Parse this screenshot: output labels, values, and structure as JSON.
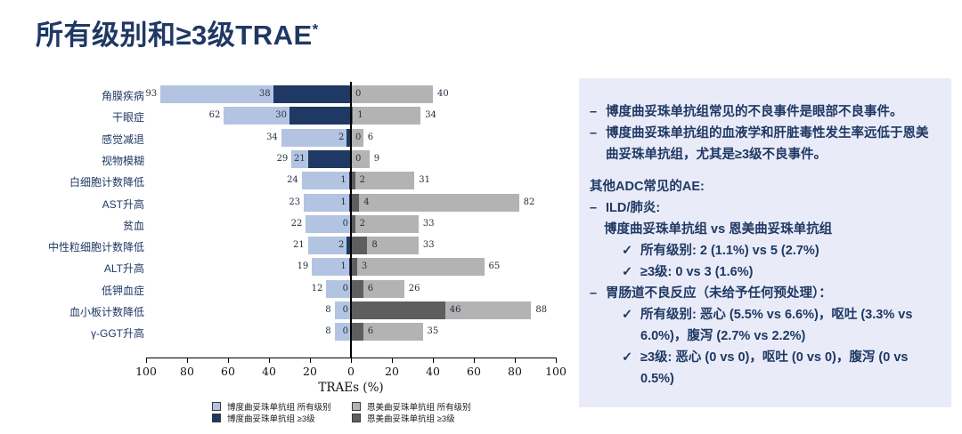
{
  "title": {
    "text": "所有级别和≥3级TRAE",
    "superscript": "*"
  },
  "colors": {
    "title_navy": "#1F3864",
    "bd_all_grade": "#B3C4E2",
    "bd_grade3": "#1F3864",
    "tdm1_all_grade": "#B3B3B3",
    "tdm1_grade3": "#5E5E5E",
    "panel_bg": "#E9ECF8",
    "axis": "#000000"
  },
  "chart_data": {
    "type": "bar",
    "subtype": "diverging-horizontal",
    "xlabel": "TRAEs (%)",
    "xlim": [
      -100,
      100
    ],
    "xticks": [
      -100,
      -80,
      -60,
      -40,
      -20,
      0,
      20,
      40,
      60,
      80,
      100
    ],
    "grid": false,
    "legend_position": "bottom",
    "categories": [
      "角膜疾病",
      "干眼症",
      "感觉减退",
      "视物模糊",
      "白细胞计数降低",
      "AST升高",
      "贫血",
      "中性粒细胞计数降低",
      "ALT升高",
      "低钾血症",
      "血小板计数降低",
      "γ-GGT升高"
    ],
    "series": [
      {
        "name": "博度曲妥珠单抗组 所有级别",
        "side": "left",
        "color": "#B3C4E2",
        "values": [
          93,
          62,
          34,
          29,
          24,
          23,
          22,
          21,
          19,
          12,
          8,
          8
        ]
      },
      {
        "name": "博度曲妥珠单抗组 ≥3级",
        "side": "left",
        "color": "#1F3864",
        "values": [
          38,
          30,
          2,
          21,
          1,
          1,
          0,
          2,
          1,
          0,
          0,
          0
        ]
      },
      {
        "name": "恩美曲妥珠单抗组 所有级别",
        "side": "right",
        "color": "#B3B3B3",
        "values": [
          40,
          34,
          6,
          9,
          31,
          82,
          33,
          33,
          65,
          26,
          88,
          35
        ]
      },
      {
        "name": "恩美曲妥珠单抗组 ≥3级",
        "side": "right",
        "color": "#5E5E5E",
        "values": [
          0,
          1,
          0,
          0,
          2,
          4,
          2,
          8,
          3,
          6,
          46,
          6
        ]
      }
    ]
  },
  "panel": {
    "items": [
      {
        "type": "dash",
        "text": "博度曲妥珠单抗组常见的不良事件是眼部不良事件。"
      },
      {
        "type": "dash",
        "text": "博度曲妥珠单抗组的血液学和肝脏毒性发生率远低于恩美曲妥珠单抗组，尤其是≥3级不良事件。"
      },
      {
        "type": "heading",
        "text": "其他ADC常见的AE:"
      },
      {
        "type": "dash",
        "text": "ILD/肺炎:"
      },
      {
        "type": "sub",
        "text": "博度曲妥珠单抗组 vs 恩美曲妥珠单抗组"
      },
      {
        "type": "check",
        "text": "所有级别: 2 (1.1%) vs 5 (2.7%)"
      },
      {
        "type": "check",
        "text": "≥3级: 0 vs 3 (1.6%)"
      },
      {
        "type": "dash",
        "text": "胃肠道不良反应（未给予任何预处理）："
      },
      {
        "type": "check",
        "text": "所有级别: 恶心 (5.5% vs 6.6%)，呕吐 (3.3% vs 6.0%)，腹泻 (2.7% vs 2.2%)"
      },
      {
        "type": "check",
        "text": "≥3级: 恶心 (0 vs 0)，呕吐 (0 vs 0)，腹泻 (0 vs 0.5%)"
      }
    ]
  }
}
